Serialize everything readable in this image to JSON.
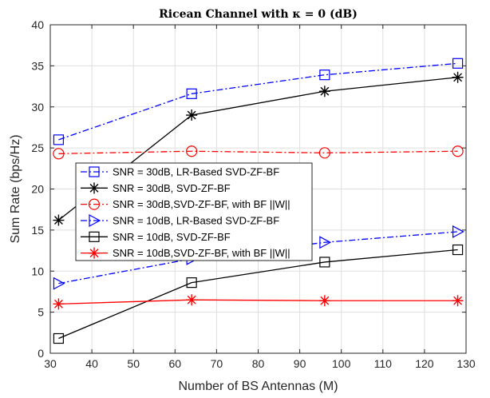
{
  "chart_data": {
    "type": "line",
    "title": "Ricean Channel with κ = 0 (dB)",
    "xlabel": "Number of BS Antennas (M)",
    "ylabel": "Sum Rate (bps/Hz)",
    "xlim": [
      30,
      130
    ],
    "ylim": [
      0,
      40
    ],
    "xticks": [
      30,
      40,
      50,
      60,
      70,
      80,
      90,
      100,
      110,
      120,
      130
    ],
    "yticks": [
      0,
      5,
      10,
      15,
      20,
      25,
      30,
      35,
      40
    ],
    "grid": true,
    "legend_position": "center-left",
    "x": [
      32,
      64,
      96,
      128
    ],
    "series": [
      {
        "name": "SNR = 30dB, LR-Based SVD-ZF-BF",
        "values": [
          26.0,
          31.6,
          33.9,
          35.3
        ],
        "color": "#0000ff",
        "dash": "dashdot",
        "marker": "square"
      },
      {
        "name": "SNR = 30dB, SVD-ZF-BF",
        "values": [
          16.2,
          29.0,
          31.9,
          33.6
        ],
        "color": "#000000",
        "dash": "solid",
        "marker": "asterisk"
      },
      {
        "name": "SNR = 30dB,SVD-ZF-BF, with BF ||W||",
        "values": [
          24.3,
          24.6,
          24.4,
          24.6
        ],
        "color": "#ff0000",
        "dash": "dashdot",
        "marker": "circle"
      },
      {
        "name": "SNR = 10dB, LR-Based SVD-ZF-BF",
        "values": [
          8.5,
          11.5,
          13.5,
          14.8
        ],
        "color": "#0000ff",
        "dash": "dashdot",
        "marker": "triangle-right"
      },
      {
        "name": "SNR = 10dB, SVD-ZF-BF",
        "values": [
          1.8,
          8.6,
          11.1,
          12.6
        ],
        "color": "#000000",
        "dash": "solid",
        "marker": "square"
      },
      {
        "name": "SNR = 10dB,SVD-ZF-BF, with BF ||W||",
        "values": [
          6.0,
          6.5,
          6.4,
          6.4
        ],
        "color": "#ff0000",
        "dash": "solid",
        "marker": "asterisk"
      }
    ]
  }
}
